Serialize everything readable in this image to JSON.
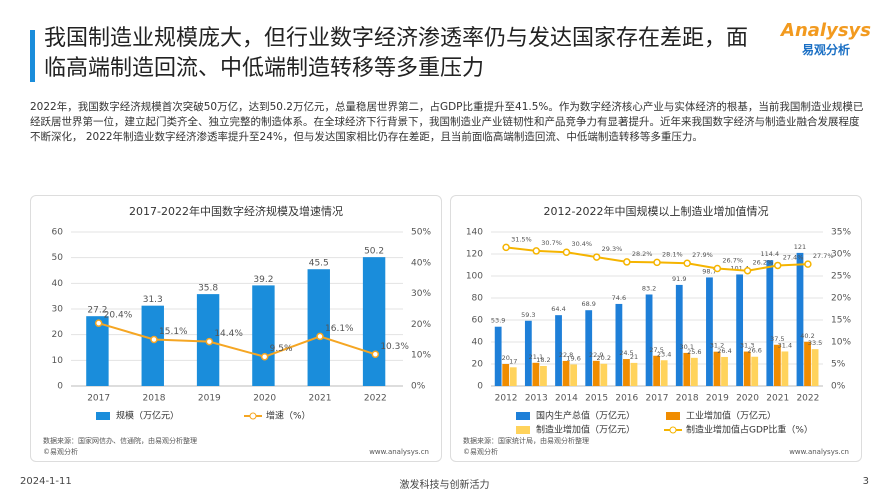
{
  "header": {
    "title": "我国制造业规模庞大，但行业数字经济渗透率仍与发达国家存在差距，面临高端制造回流、中低端制造转移等多重压力",
    "logo": "Analysys",
    "logo_sub": "易观分析"
  },
  "paragraph": "2022年，我国数字经济规模首次突破50万亿，达到50.2万亿元，总量稳居世界第二，占GDP比重提升至41.5%。作为数字经济核心产业与实体经济的根基，当前我国制造业规模已经跃居世界第一位，建立起门类齐全、独立完整的制造体系。在全球经济下行背景下，我国制造业产业链韧性和产品竞争力有显著提升。近年来我国数字经济与制造业融合发展程度不断深化， 2022年制造业数字经济渗透率提升至24%，但与发达国家相比仍存在差距，且当前面临高端制造回流、中低端制造转移等多重压力。",
  "chart_data": [
    {
      "type": "bar_line",
      "title": "2017-2022年中国数字经济规模及增速情况",
      "categories": [
        "2017",
        "2018",
        "2019",
        "2020",
        "2021",
        "2022"
      ],
      "series": [
        {
          "name": "规模（万亿元）",
          "type": "bar",
          "color": "#1a8ddb",
          "values": [
            27.2,
            31.3,
            35.8,
            39.2,
            45.5,
            50.2
          ]
        },
        {
          "name": "增速（%）",
          "type": "line",
          "axis": "y2",
          "color": "#f5a623",
          "values": [
            20.4,
            15.1,
            14.4,
            9.5,
            16.1,
            10.3
          ],
          "value_labels": [
            "20.4%",
            "15.1%",
            "14.4%",
            "9.5%",
            "16.1%",
            "10.3%"
          ]
        }
      ],
      "ylim": [
        0,
        60
      ],
      "yticks": [
        0,
        10,
        20,
        30,
        40,
        50,
        60
      ],
      "y2lim": [
        0,
        50
      ],
      "y2ticks": [
        {
          "value": 0,
          "label": "0%"
        },
        {
          "value": 10,
          "label": "10%"
        },
        {
          "value": 20,
          "label": "20%"
        },
        {
          "value": 30,
          "label": "30%"
        },
        {
          "value": 40,
          "label": "40%"
        },
        {
          "value": 50,
          "label": "50%"
        }
      ],
      "grid": true,
      "source": "数据来源：国家网信办、信通院，由易观分析整理",
      "copyright": "©易观分析",
      "website": "www.analysys.cn"
    },
    {
      "type": "bar_line",
      "title": "2012-2022年中国规模以上制造业增加值情况",
      "categories": [
        "2012",
        "2013",
        "2014",
        "2015",
        "2016",
        "2017",
        "2018",
        "2019",
        "2020",
        "2021",
        "2022"
      ],
      "series": [
        {
          "name": "国内生产总值（万亿元）",
          "type": "bar",
          "color": "#1e7fd8",
          "values": [
            53.9,
            59.3,
            64.4,
            68.9,
            74.6,
            83.2,
            91.9,
            98.7,
            101.4,
            114.4,
            121
          ]
        },
        {
          "name": "工业增加值（万亿元）",
          "type": "bar",
          "color": "#f08c00",
          "values": [
            20,
            21.1,
            22.8,
            22.9,
            24.5,
            27.5,
            30.1,
            31.2,
            31.3,
            37.5,
            40.2
          ]
        },
        {
          "name": "制造业增加值（万亿元）",
          "type": "bar",
          "color": "#ffd35c",
          "values": [
            17,
            18.2,
            19.6,
            20.2,
            21,
            23.4,
            25.6,
            26.4,
            26.6,
            31.4,
            33.5
          ]
        },
        {
          "name": "制造业增加值占GDP比重（%）",
          "type": "line",
          "axis": "y2",
          "color": "#f5b400",
          "values": [
            31.5,
            30.7,
            30.4,
            29.3,
            28.2,
            28.1,
            27.9,
            26.7,
            26.2,
            27.4,
            27.7
          ],
          "value_labels": [
            "31.5%",
            "30.7%",
            "30.4%",
            "29.3%",
            "28.2%",
            "28.1%",
            "27.9%",
            "26.7%",
            "26.2%",
            "27.4%",
            "27.7%"
          ]
        }
      ],
      "ylim": [
        0,
        140
      ],
      "yticks": [
        0,
        20,
        40,
        60,
        80,
        100,
        120,
        140
      ],
      "y2lim": [
        0,
        35
      ],
      "y2ticks": [
        {
          "value": 0,
          "label": "0%"
        },
        {
          "value": 5,
          "label": "5%"
        },
        {
          "value": 10,
          "label": "10%"
        },
        {
          "value": 15,
          "label": "15%"
        },
        {
          "value": 20,
          "label": "20%"
        },
        {
          "value": 25,
          "label": "25%"
        },
        {
          "value": 30,
          "label": "30%"
        },
        {
          "value": 35,
          "label": "35%"
        }
      ],
      "grid": true,
      "source": "数据来源：国家统计局，由易观分析整理",
      "copyright": "©易观分析",
      "website": "www.analysys.cn"
    }
  ],
  "footer": {
    "date": "2024-1-11",
    "slogan": "激发科技与创新活力",
    "page": "3"
  }
}
